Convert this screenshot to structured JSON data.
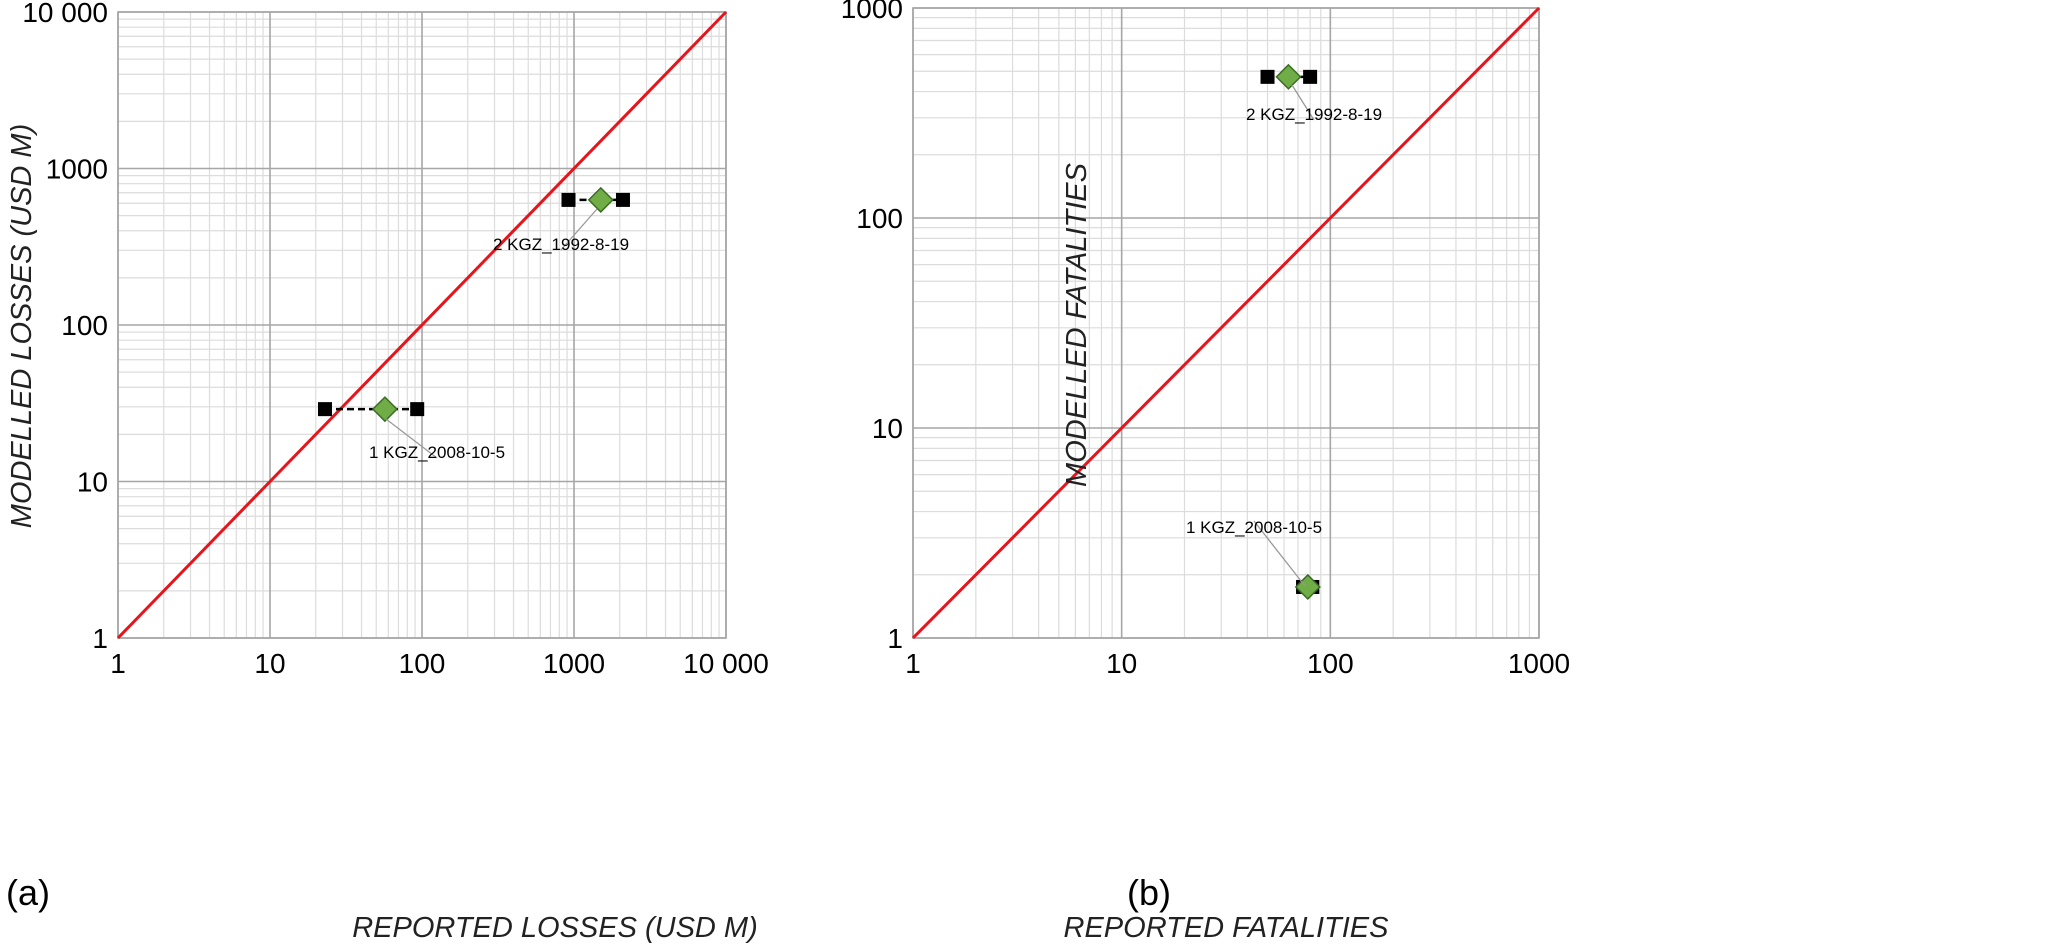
{
  "chart_data": [
    {
      "type": "scatter",
      "panel_label": "(a)",
      "xlabel": "REPORTED LOSSES (USD M)",
      "ylabel": "MODELLED  LOSSES (USD M)",
      "xscale": "log",
      "yscale": "log",
      "xlim": [
        1,
        10000
      ],
      "ylim": [
        1,
        10000
      ],
      "xtick_values": [
        1,
        10,
        100,
        1000,
        10000
      ],
      "xtick_labels": [
        "1",
        "10",
        "100",
        "1000",
        "10 000"
      ],
      "ytick_values": [
        1,
        10,
        100,
        1000,
        10000
      ],
      "ytick_labels": [
        "1",
        "10",
        "100",
        "1000",
        "10 000"
      ],
      "grid": true,
      "reference_line": {
        "x": [
          1,
          10000
        ],
        "y": [
          1,
          10000
        ],
        "color": "#e8141b"
      },
      "points": [
        {
          "label": "1 KGZ_2008-10-5",
          "x": 57,
          "y": 29,
          "x_range": [
            23,
            93
          ]
        },
        {
          "label": "2 KGZ_1992-8-19",
          "x": 1500,
          "y": 630,
          "x_range": [
            920,
            2100
          ]
        }
      ]
    },
    {
      "type": "scatter",
      "panel_label": "(b)",
      "xlabel": "REPORTED FATALITIES",
      "ylabel": "MODELLED  FATALITIES",
      "xscale": "log",
      "yscale": "log",
      "xlim": [
        1,
        1000
      ],
      "ylim": [
        1,
        1000
      ],
      "xtick_values": [
        1,
        10,
        100,
        1000
      ],
      "xtick_labels": [
        "1",
        "10",
        "100",
        "1000"
      ],
      "ytick_values": [
        1,
        10,
        100,
        1000
      ],
      "ytick_labels": [
        "1",
        "10",
        "100",
        "1000"
      ],
      "grid": true,
      "reference_line": {
        "x": [
          1,
          1000
        ],
        "y": [
          1,
          1000
        ],
        "color": "#e8141b"
      },
      "points": [
        {
          "label": "1 KGZ_2008-10-5",
          "x": 78,
          "y": 1.75,
          "x_range": [
            74,
            82
          ]
        },
        {
          "label": "2 KGZ_1992-8-19",
          "x": 63,
          "y": 470,
          "x_range": [
            50,
            80
          ]
        }
      ]
    }
  ],
  "colors": {
    "marker_fill": "#70ad47",
    "marker_edge": "#3b6b25",
    "range_marker": "#000000",
    "ref_line": "#e8141b",
    "grid_major": "#a6a6a6",
    "grid_minor": "#dcdcdc"
  }
}
